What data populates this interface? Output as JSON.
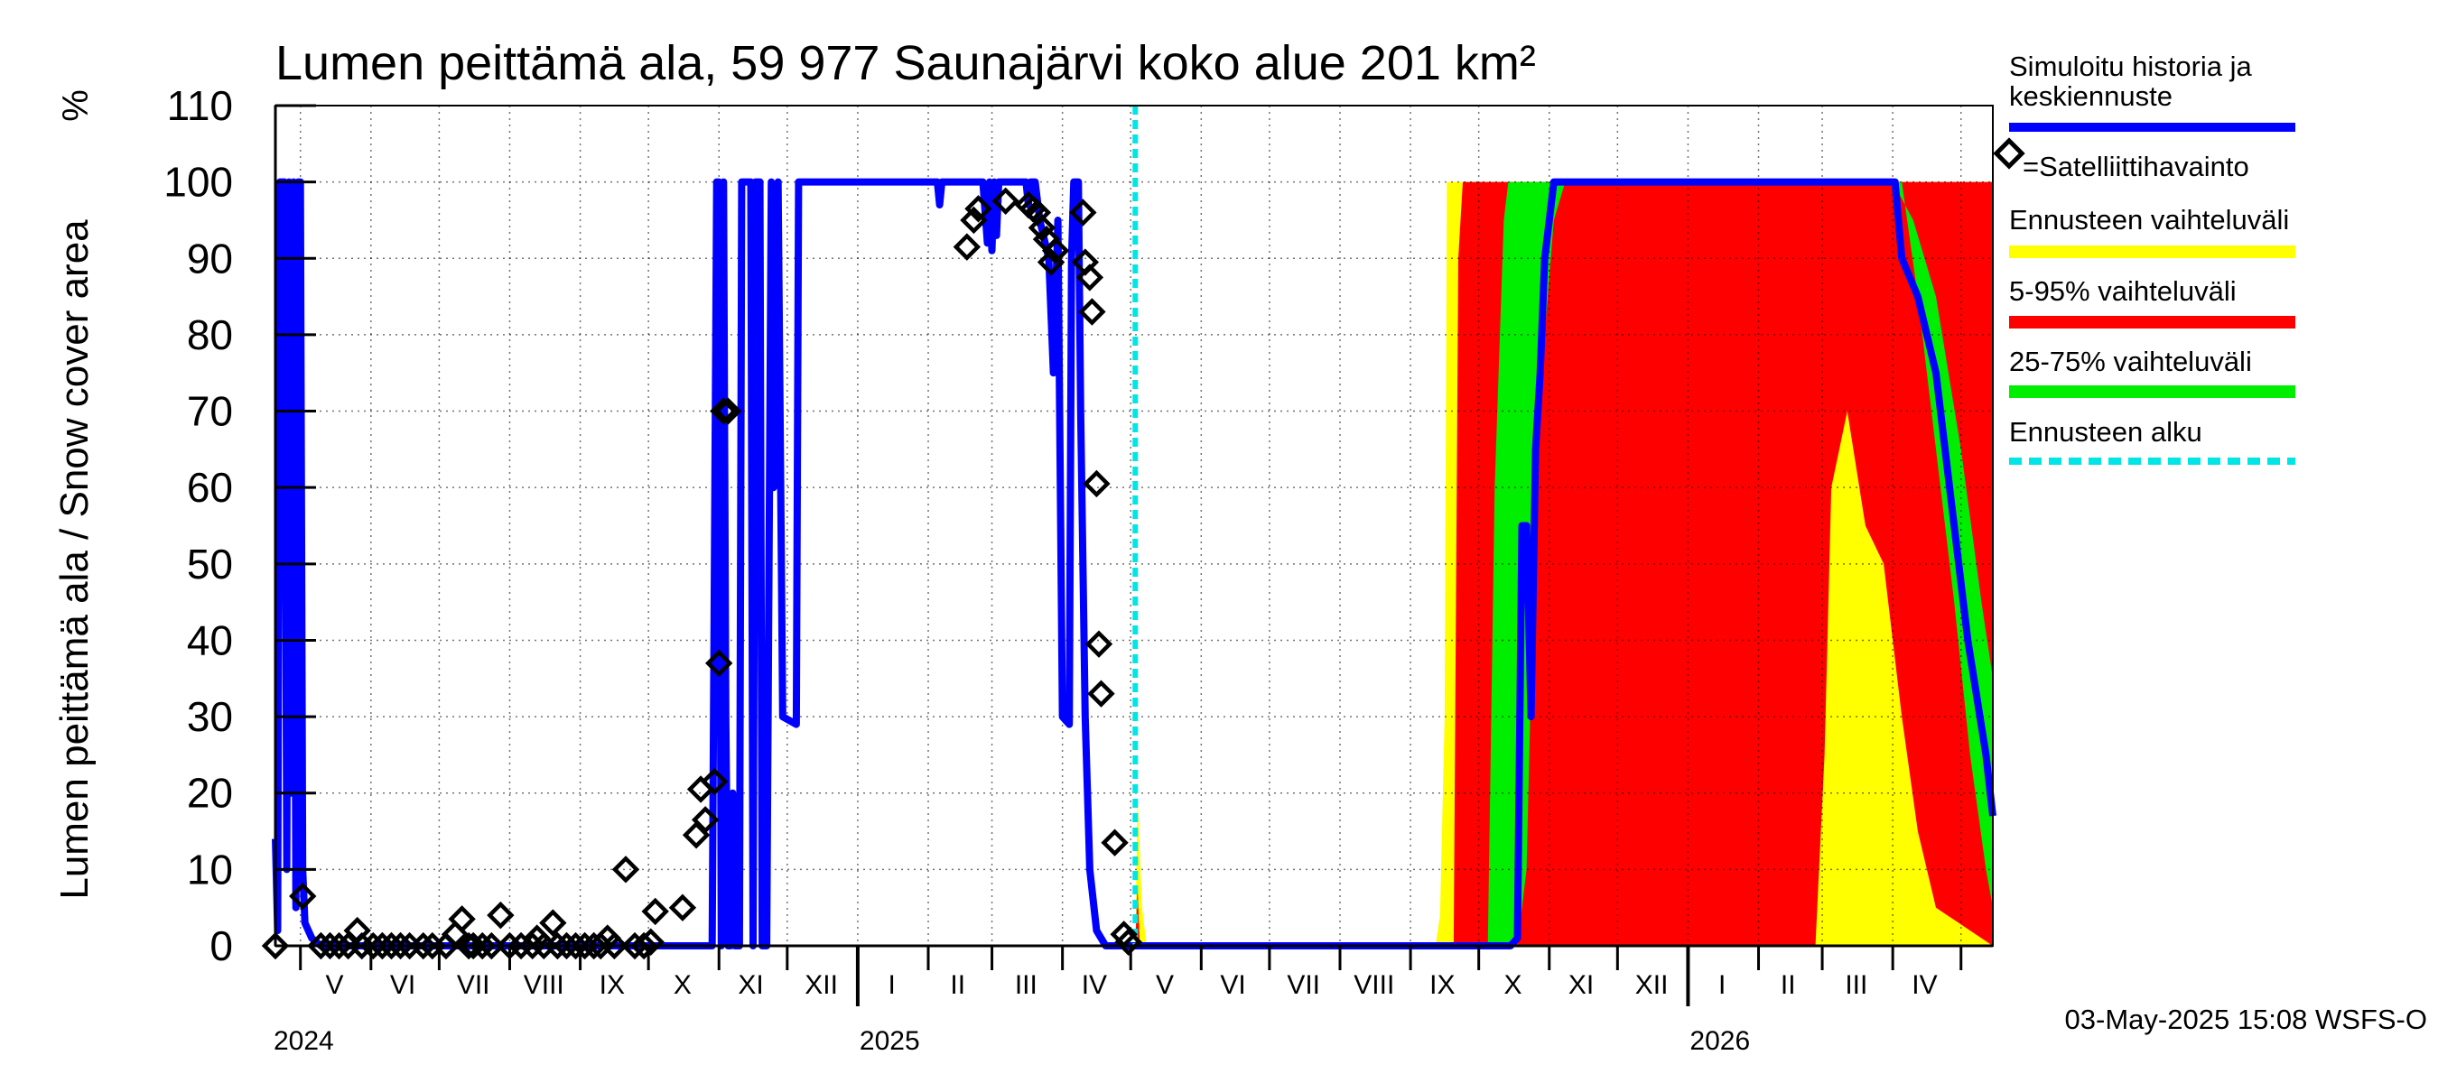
{
  "chart_data": {
    "type": "area",
    "title": "Lumen peittämä ala, 59 977 Saunajärvi koko alue 201 km²",
    "ylabel": "Lumen peittämä ala / Snow cover area",
    "yunit": "%",
    "ylim": [
      0,
      110
    ],
    "yticks": [
      0,
      10,
      20,
      30,
      40,
      50,
      60,
      70,
      80,
      90,
      100,
      110
    ],
    "xlim": [
      "2024-04-20",
      "2026-05-15"
    ],
    "forecast_start": "2025-05-03",
    "month_labels": [
      {
        "label": "V",
        "date": "2024-05-16"
      },
      {
        "label": "VI",
        "date": "2024-06-15"
      },
      {
        "label": "VII",
        "date": "2024-07-16"
      },
      {
        "label": "VIII",
        "date": "2024-08-16"
      },
      {
        "label": "IX",
        "date": "2024-09-15"
      },
      {
        "label": "X",
        "date": "2024-10-16"
      },
      {
        "label": "XI",
        "date": "2024-11-15"
      },
      {
        "label": "XII",
        "date": "2024-12-16"
      },
      {
        "label": "I",
        "date": "2025-01-16"
      },
      {
        "label": "II",
        "date": "2025-02-14"
      },
      {
        "label": "III",
        "date": "2025-03-16"
      },
      {
        "label": "IV",
        "date": "2025-04-15"
      },
      {
        "label": "V",
        "date": "2025-05-16"
      },
      {
        "label": "VI",
        "date": "2025-06-15"
      },
      {
        "label": "VII",
        "date": "2025-07-16"
      },
      {
        "label": "VIII",
        "date": "2025-08-16"
      },
      {
        "label": "IX",
        "date": "2025-09-15"
      },
      {
        "label": "X",
        "date": "2025-10-16"
      },
      {
        "label": "XI",
        "date": "2025-11-15"
      },
      {
        "label": "XII",
        "date": "2025-12-16"
      },
      {
        "label": "I",
        "date": "2026-01-16"
      },
      {
        "label": "II",
        "date": "2026-02-14"
      },
      {
        "label": "III",
        "date": "2026-03-16"
      },
      {
        "label": "IV",
        "date": "2026-04-15"
      }
    ],
    "year_labels": [
      {
        "label": "2024",
        "date": "2024-04-20"
      },
      {
        "label": "2025",
        "date": "2025-01-01"
      },
      {
        "label": "2026",
        "date": "2026-01-01"
      }
    ],
    "series": [
      {
        "name": "Simuloitu historia ja keskiennuste",
        "color": "#0000ff",
        "points": [
          [
            "2024-04-20",
            14
          ],
          [
            "2024-04-21",
            2
          ],
          [
            "2024-04-22",
            100
          ],
          [
            "2024-04-24",
            100
          ],
          [
            "2024-04-25",
            10
          ],
          [
            "2024-04-26",
            100
          ],
          [
            "2024-04-27",
            20
          ],
          [
            "2024-04-28",
            100
          ],
          [
            "2024-04-29",
            5
          ],
          [
            "2024-04-30",
            100
          ],
          [
            "2024-05-01",
            100
          ],
          [
            "2024-05-02",
            10
          ],
          [
            "2024-05-03",
            3
          ],
          [
            "2024-05-06",
            1
          ],
          [
            "2024-05-10",
            0
          ],
          [
            "2024-10-29",
            0
          ],
          [
            "2024-10-31",
            100
          ],
          [
            "2024-11-01",
            100
          ],
          [
            "2024-11-02",
            0
          ],
          [
            "2024-11-03",
            100
          ],
          [
            "2024-11-04",
            30
          ],
          [
            "2024-11-05",
            0
          ],
          [
            "2024-11-06",
            0
          ],
          [
            "2024-11-07",
            20
          ],
          [
            "2024-11-08",
            0
          ],
          [
            "2024-11-10",
            0
          ],
          [
            "2024-11-11",
            100
          ],
          [
            "2024-11-15",
            100
          ],
          [
            "2024-11-16",
            0
          ],
          [
            "2024-11-17",
            100
          ],
          [
            "2024-11-19",
            100
          ],
          [
            "2024-11-20",
            0
          ],
          [
            "2024-11-22",
            0
          ],
          [
            "2024-11-24",
            100
          ],
          [
            "2024-11-25",
            60
          ],
          [
            "2024-11-27",
            100
          ],
          [
            "2024-11-29",
            30
          ],
          [
            "2024-12-05",
            29
          ],
          [
            "2024-12-06",
            100
          ],
          [
            "2025-02-05",
            100
          ],
          [
            "2025-02-06",
            97
          ],
          [
            "2025-02-07",
            100
          ],
          [
            "2025-02-25",
            100
          ],
          [
            "2025-02-27",
            92
          ],
          [
            "2025-02-28",
            100
          ],
          [
            "2025-03-01",
            91
          ],
          [
            "2025-03-02",
            100
          ],
          [
            "2025-03-03",
            93
          ],
          [
            "2025-03-04",
            100
          ],
          [
            "2025-03-16",
            100
          ],
          [
            "2025-03-17",
            97
          ],
          [
            "2025-03-18",
            100
          ],
          [
            "2025-03-20",
            100
          ],
          [
            "2025-03-22",
            95
          ],
          [
            "2025-03-26",
            90
          ],
          [
            "2025-03-28",
            75
          ],
          [
            "2025-03-30",
            95
          ],
          [
            "2025-04-01",
            30
          ],
          [
            "2025-04-04",
            29
          ],
          [
            "2025-04-05",
            90
          ],
          [
            "2025-04-06",
            100
          ],
          [
            "2025-04-08",
            100
          ],
          [
            "2025-04-09",
            70
          ],
          [
            "2025-04-11",
            30
          ],
          [
            "2025-04-13",
            10
          ],
          [
            "2025-04-16",
            2
          ],
          [
            "2025-04-20",
            0
          ],
          [
            "2025-05-03",
            0
          ],
          [
            "2025-10-15",
            0
          ],
          [
            "2025-10-18",
            1
          ],
          [
            "2025-10-20",
            55
          ],
          [
            "2025-10-22",
            55
          ],
          [
            "2025-10-24",
            30
          ],
          [
            "2025-10-26",
            65
          ],
          [
            "2025-10-28",
            75
          ],
          [
            "2025-10-30",
            90
          ],
          [
            "2025-11-01",
            95
          ],
          [
            "2025-11-03",
            100
          ],
          [
            "2026-04-02",
            100
          ],
          [
            "2026-04-05",
            90
          ],
          [
            "2026-04-12",
            85
          ],
          [
            "2026-04-20",
            75
          ],
          [
            "2026-04-26",
            60
          ],
          [
            "2026-05-04",
            40
          ],
          [
            "2026-05-12",
            25
          ],
          [
            "2026-05-15",
            17
          ]
        ]
      }
    ],
    "bands": [
      {
        "name": "Ennusteen vaihteluväli",
        "color": "#ffff00",
        "lower": [
          [
            "2025-05-03",
            0
          ],
          [
            "2026-05-15",
            0
          ]
        ],
        "upper": [
          [
            "2025-05-03",
            0
          ],
          [
            "2025-05-04",
            20
          ],
          [
            "2025-05-06",
            5
          ],
          [
            "2025-05-08",
            0
          ],
          [
            "2025-09-12",
            0
          ],
          [
            "2025-09-14",
            4
          ],
          [
            "2025-09-16",
            30
          ],
          [
            "2025-09-17",
            100
          ],
          [
            "2026-05-15",
            100
          ]
        ]
      },
      {
        "name": "5-95% vaihteluväli",
        "color": "#ff0000",
        "lower": [
          [
            "2025-05-03",
            0
          ],
          [
            "2026-02-26",
            0
          ],
          [
            "2026-03-02",
            25
          ],
          [
            "2026-03-05",
            60
          ],
          [
            "2026-03-12",
            70
          ],
          [
            "2026-03-20",
            55
          ],
          [
            "2026-03-28",
            50
          ],
          [
            "2026-04-05",
            30
          ],
          [
            "2026-04-12",
            15
          ],
          [
            "2026-04-20",
            5
          ],
          [
            "2026-05-15",
            0
          ]
        ],
        "upper": [
          [
            "2025-05-03",
            0
          ],
          [
            "2025-05-04",
            8
          ],
          [
            "2025-05-05",
            0
          ],
          [
            "2025-09-20",
            0
          ],
          [
            "2025-09-22",
            90
          ],
          [
            "2025-09-24",
            100
          ],
          [
            "2026-05-15",
            100
          ]
        ]
      },
      {
        "name": "25-75% vaihteluväli",
        "color": "#00ee00",
        "lower": [
          [
            "2025-05-03",
            0
          ],
          [
            "2025-10-18",
            0
          ],
          [
            "2025-10-22",
            10
          ],
          [
            "2025-10-26",
            60
          ],
          [
            "2025-10-30",
            80
          ],
          [
            "2025-11-03",
            95
          ],
          [
            "2025-11-08",
            100
          ],
          [
            "2026-04-05",
            100
          ],
          [
            "2026-04-12",
            85
          ],
          [
            "2026-04-20",
            65
          ],
          [
            "2026-04-28",
            45
          ],
          [
            "2026-05-05",
            25
          ],
          [
            "2026-05-12",
            10
          ],
          [
            "2026-05-15",
            5
          ]
        ],
        "upper": [
          [
            "2025-05-03",
            0
          ],
          [
            "2025-10-05",
            0
          ],
          [
            "2025-10-08",
            60
          ],
          [
            "2025-10-12",
            95
          ],
          [
            "2025-10-14",
            100
          ],
          [
            "2026-04-01",
            100
          ],
          [
            "2026-04-10",
            95
          ],
          [
            "2026-04-20",
            85
          ],
          [
            "2026-05-01",
            65
          ],
          [
            "2026-05-10",
            45
          ],
          [
            "2026-05-15",
            35
          ]
        ]
      }
    ],
    "satellite_observations": [
      [
        "2024-04-20",
        0
      ],
      [
        "2024-05-02",
        6.5
      ],
      [
        "2024-05-10",
        0
      ],
      [
        "2024-05-14",
        0
      ],
      [
        "2024-05-18",
        0
      ],
      [
        "2024-05-22",
        0
      ],
      [
        "2024-05-26",
        2
      ],
      [
        "2024-05-28",
        0
      ],
      [
        "2024-06-02",
        0
      ],
      [
        "2024-06-06",
        0
      ],
      [
        "2024-06-10",
        0
      ],
      [
        "2024-06-14",
        0
      ],
      [
        "2024-06-18",
        0
      ],
      [
        "2024-06-24",
        0
      ],
      [
        "2024-06-28",
        0
      ],
      [
        "2024-07-04",
        0
      ],
      [
        "2024-07-08",
        1.5
      ],
      [
        "2024-07-11",
        3.5
      ],
      [
        "2024-07-14",
        0
      ],
      [
        "2024-07-16",
        0
      ],
      [
        "2024-07-20",
        0
      ],
      [
        "2024-07-24",
        0
      ],
      [
        "2024-07-28",
        4
      ],
      [
        "2024-08-01",
        0
      ],
      [
        "2024-08-06",
        0
      ],
      [
        "2024-08-11",
        0
      ],
      [
        "2024-08-13",
        1
      ],
      [
        "2024-08-16",
        0
      ],
      [
        "2024-08-20",
        3
      ],
      [
        "2024-08-22",
        0
      ],
      [
        "2024-08-26",
        0
      ],
      [
        "2024-08-30",
        0
      ],
      [
        "2024-09-03",
        0
      ],
      [
        "2024-09-07",
        0
      ],
      [
        "2024-09-10",
        0
      ],
      [
        "2024-09-13",
        1
      ],
      [
        "2024-09-16",
        0
      ],
      [
        "2024-09-21",
        10
      ],
      [
        "2024-09-25",
        0
      ],
      [
        "2024-09-29",
        0
      ],
      [
        "2024-10-02",
        0.5
      ],
      [
        "2024-10-04",
        4.5
      ],
      [
        "2024-10-16",
        5
      ],
      [
        "2024-10-22",
        14.5
      ],
      [
        "2024-10-24",
        20.5
      ],
      [
        "2024-10-26",
        16.5
      ],
      [
        "2024-10-30",
        21.5
      ],
      [
        "2024-11-01",
        37
      ],
      [
        "2024-11-03",
        70
      ],
      [
        "2024-11-05",
        70
      ],
      [
        "2025-02-18",
        91.5
      ],
      [
        "2025-02-21",
        95
      ],
      [
        "2025-02-23",
        96.5
      ],
      [
        "2025-03-07",
        97.5
      ],
      [
        "2025-03-17",
        97
      ],
      [
        "2025-03-19",
        96.5
      ],
      [
        "2025-03-21",
        96
      ],
      [
        "2025-03-23",
        94
      ],
      [
        "2025-03-25",
        92.5
      ],
      [
        "2025-03-27",
        89.5
      ],
      [
        "2025-03-29",
        91
      ],
      [
        "2025-04-10",
        96
      ],
      [
        "2025-04-11",
        89.5
      ],
      [
        "2025-04-13",
        87.5
      ],
      [
        "2025-04-14",
        83
      ],
      [
        "2025-04-16",
        60.5
      ],
      [
        "2025-04-17",
        39.5
      ],
      [
        "2025-04-18",
        33
      ],
      [
        "2025-04-24",
        13.5
      ],
      [
        "2025-04-28",
        1.5
      ],
      [
        "2025-04-30",
        0.5
      ]
    ]
  },
  "legend": {
    "sim_label_line1": "Simuloitu historia ja",
    "sim_label_line2": "keskiennuste",
    "sat_label": "=Satelliittihavainto",
    "range_label": "Ennusteen vaihteluväli",
    "p595_label": "5-95% vaihteluväli",
    "p2575_label": "25-75% vaihteluväli",
    "fc_start_label": "Ennusteen alku",
    "colors": {
      "simulated": "#0000ff",
      "range": "#ffff00",
      "p595": "#ff0000",
      "p2575": "#00ee00",
      "forecast_start": "#00e5e5"
    }
  },
  "footer": {
    "timestamp": "03-May-2025 15:08 WSFS-O"
  }
}
